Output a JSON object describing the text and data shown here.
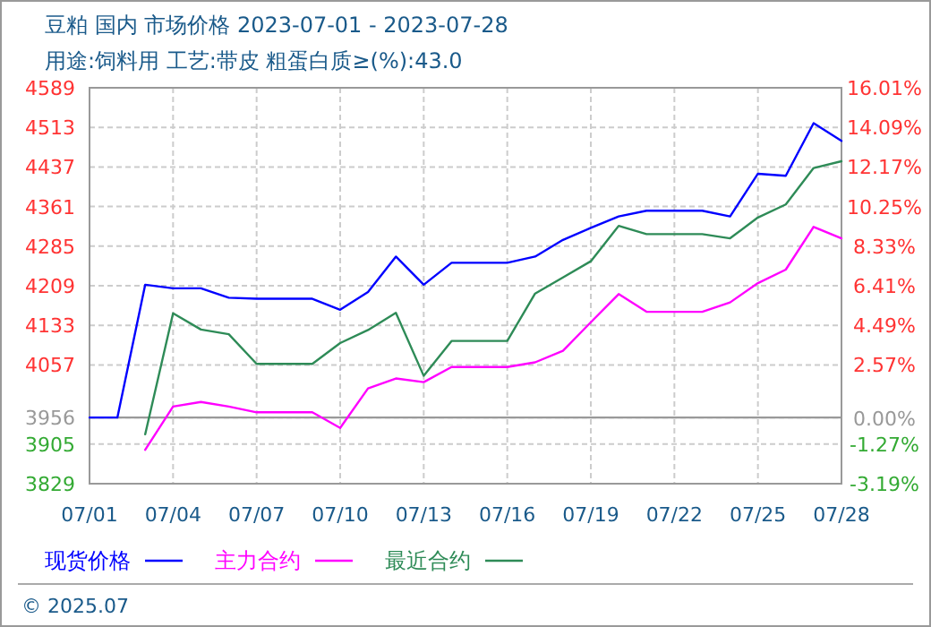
{
  "chart_data": {
    "type": "line",
    "title": "豆粕 国内 市场价格 2023-07-01 - 2023-07-28",
    "subtitle": "用途:饲料用 工艺:带皮 粗蛋白质≥(%):43.0",
    "annotations": [
      "© 2025.07"
    ],
    "x": [
      "2023-07-01",
      "2023-07-02",
      "2023-07-03",
      "2023-07-04",
      "2023-07-05",
      "2023-07-06",
      "2023-07-07",
      "2023-07-08",
      "2023-07-09",
      "2023-07-10",
      "2023-07-11",
      "2023-07-12",
      "2023-07-13",
      "2023-07-14",
      "2023-07-15",
      "2023-07-16",
      "2023-07-17",
      "2023-07-18",
      "2023-07-19",
      "2023-07-20",
      "2023-07-21",
      "2023-07-22",
      "2023-07-23",
      "2023-07-24",
      "2023-07-25",
      "2023-07-26",
      "2023-07-27",
      "2023-07-28"
    ],
    "series": [
      {
        "name": "现货价格",
        "color": "#0000ff",
        "values": [
          3956,
          3956,
          4211,
          4204,
          4204,
          4186,
          4184,
          4184,
          4184,
          4163,
          4197,
          4265,
          4211,
          4253,
          4253,
          4253,
          4265,
          4297,
          4320,
          4342,
          4353,
          4353,
          4353,
          4342,
          4424,
          4420,
          4521,
          4487
        ]
      },
      {
        "name": "主力合约",
        "color": "#ff00ff",
        "values": [
          null,
          null,
          3894,
          3977,
          3986,
          3977,
          3966,
          3966,
          3966,
          3936,
          4012,
          4031,
          4024,
          4053,
          4053,
          4053,
          4062,
          4084,
          4139,
          4193,
          4159,
          4159,
          4159,
          4177,
          4214,
          4240,
          4322,
          4300
        ]
      },
      {
        "name": "最近合约",
        "color": "#2e8b57",
        "values": [
          null,
          null,
          3924,
          4156,
          4125,
          4116,
          4059,
          4059,
          4059,
          4099,
          4124,
          4157,
          4036,
          4103,
          4103,
          4103,
          4194,
          4225,
          4256,
          4324,
          4308,
          4308,
          4308,
          4300,
          4340,
          4365,
          4435,
          4448
        ]
      }
    ],
    "xlim": [
      "2023-07-01",
      "2023-07-28"
    ],
    "xticks": [
      {
        "value": "2023-07-01",
        "label": "07/01"
      },
      {
        "value": "2023-07-04",
        "label": "07/04"
      },
      {
        "value": "2023-07-07",
        "label": "07/07"
      },
      {
        "value": "2023-07-10",
        "label": "07/10"
      },
      {
        "value": "2023-07-13",
        "label": "07/13"
      },
      {
        "value": "2023-07-16",
        "label": "07/16"
      },
      {
        "value": "2023-07-19",
        "label": "07/19"
      },
      {
        "value": "2023-07-22",
        "label": "07/22"
      },
      {
        "value": "2023-07-25",
        "label": "07/25"
      },
      {
        "value": "2023-07-28",
        "label": "07/28"
      }
    ],
    "ylim": [
      3829,
      4589
    ],
    "yticks": [
      3829,
      3905,
      3956,
      4057,
      4133,
      4209,
      4285,
      4361,
      4437,
      4513,
      4589
    ],
    "y2lim": [
      -3.19,
      16.01
    ],
    "y2ticks": [
      {
        "value": -3.19,
        "label": "-3.19%"
      },
      {
        "value": -1.27,
        "label": "-1.27%"
      },
      {
        "value": 0,
        "label": "0.00%"
      },
      {
        "value": 2.57,
        "label": "2.57%"
      },
      {
        "value": 4.49,
        "label": "4.49%"
      },
      {
        "value": 6.41,
        "label": "6.41%"
      },
      {
        "value": 8.33,
        "label": "8.33%"
      },
      {
        "value": 10.25,
        "label": "10.25%"
      },
      {
        "value": 12.17,
        "label": "12.17%"
      },
      {
        "value": 14.09,
        "label": "14.09%"
      },
      {
        "value": 16.01,
        "label": "16.01%"
      }
    ],
    "ref_lines": [
      {
        "axis": "y",
        "value": 3956,
        "label": null,
        "color": "#999999",
        "line_style": "solid"
      }
    ],
    "grid": true,
    "legend": "bottom",
    "marker": "none",
    "line_style": "solid"
  }
}
